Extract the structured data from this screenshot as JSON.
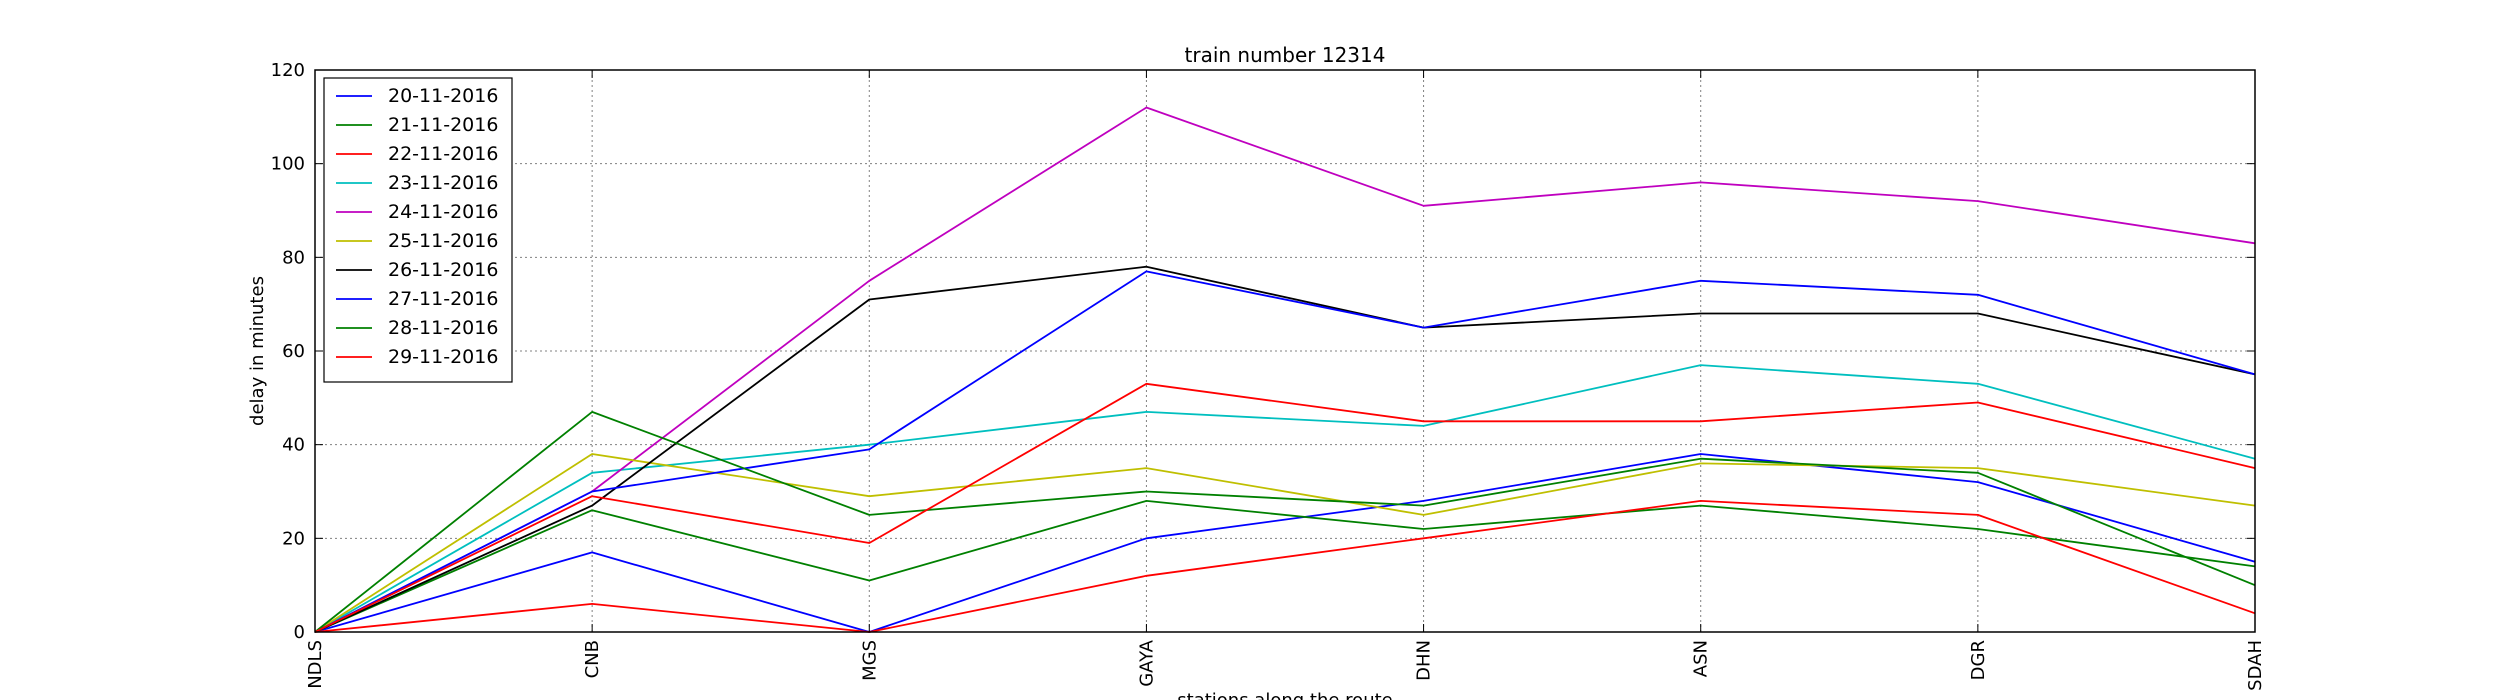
{
  "chart_data": {
    "type": "line",
    "title": "train number 12314",
    "xlabel": "stations along the route",
    "ylabel": "delay in minutes",
    "categories": [
      "NDLS",
      "CNB",
      "MGS",
      "GAYA",
      "DHN",
      "ASN",
      "DGR",
      "SDAH"
    ],
    "ylim": [
      0,
      120
    ],
    "yticks": [
      0,
      20,
      40,
      60,
      80,
      100,
      120
    ],
    "grid": true,
    "legend_position": "top-left",
    "series": [
      {
        "name": "20-11-2016",
        "color": "#0000ff",
        "values": [
          0,
          17,
          0,
          20,
          28,
          38,
          32,
          15
        ]
      },
      {
        "name": "21-11-2016",
        "color": "#008000",
        "values": [
          0,
          26,
          11,
          28,
          22,
          27,
          22,
          14
        ]
      },
      {
        "name": "22-11-2016",
        "color": "#ff0000",
        "values": [
          0,
          6,
          0,
          12,
          20,
          28,
          25,
          4
        ]
      },
      {
        "name": "23-11-2016",
        "color": "#00bfbf",
        "values": [
          0,
          34,
          40,
          47,
          44,
          57,
          53,
          37
        ]
      },
      {
        "name": "24-11-2016",
        "color": "#bf00bf",
        "values": [
          0,
          30,
          75,
          112,
          91,
          96,
          92,
          83
        ]
      },
      {
        "name": "25-11-2016",
        "color": "#bfbf00",
        "values": [
          0,
          38,
          29,
          35,
          25,
          36,
          35,
          27
        ]
      },
      {
        "name": "26-11-2016",
        "color": "#000000",
        "values": [
          0,
          27,
          71,
          78,
          65,
          68,
          68,
          55
        ]
      },
      {
        "name": "27-11-2016",
        "color": "#0000ff",
        "values": [
          0,
          30,
          39,
          77,
          65,
          75,
          72,
          55
        ]
      },
      {
        "name": "28-11-2016",
        "color": "#008000",
        "values": [
          0,
          47,
          25,
          30,
          27,
          37,
          34,
          10
        ]
      },
      {
        "name": "29-11-2016",
        "color": "#ff0000",
        "values": [
          0,
          29,
          19,
          53,
          45,
          45,
          49,
          35
        ]
      }
    ]
  }
}
